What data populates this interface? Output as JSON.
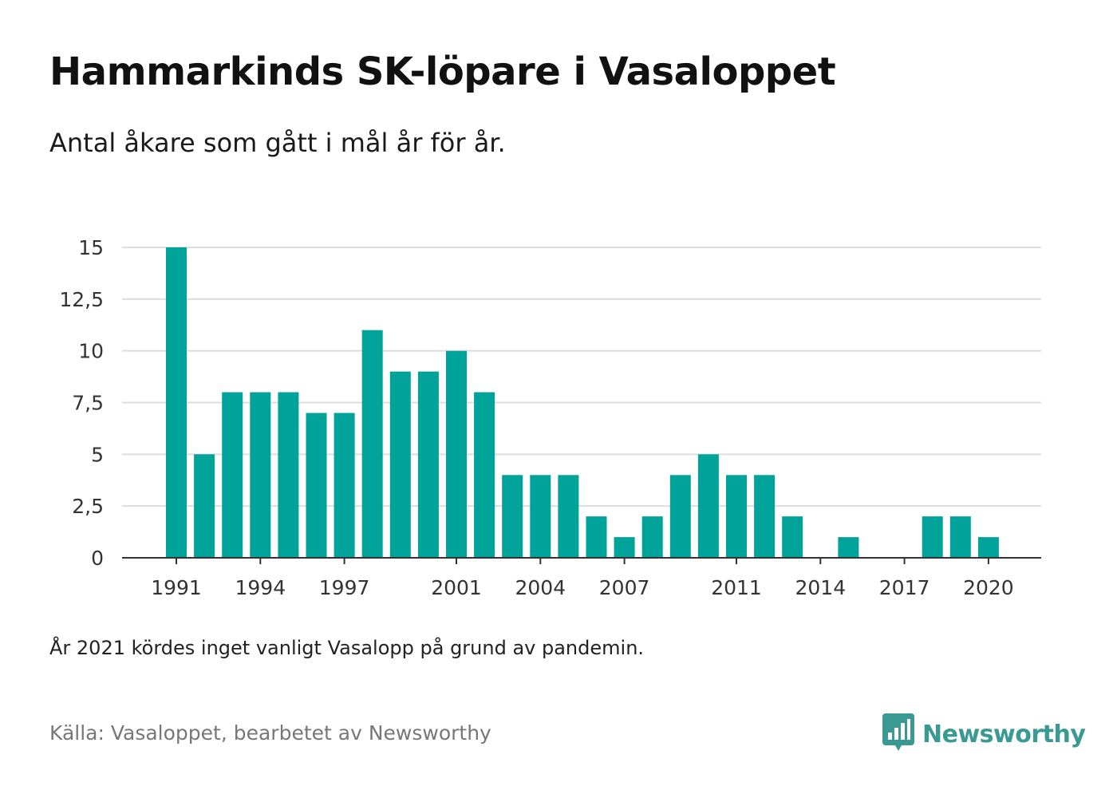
{
  "header": {
    "title": "Hammarkinds SK-löpare i Vasaloppet",
    "subtitle": "Antal åkare som gått i mål år för år."
  },
  "footer": {
    "note": "År 2021 kördes inget vanligt Vasalopp på grund av pandemin.",
    "source": "Källa: Vasaloppet, bearbetet av Newsworthy",
    "brand": "Newsworthy"
  },
  "colors": {
    "bar": "#00a39a",
    "grid": "#dddddd",
    "axis": "#333333",
    "brand": "#3a9a93"
  },
  "chart_data": {
    "type": "bar",
    "title": "Hammarkinds SK-löpare i Vasaloppet",
    "subtitle": "Antal åkare som gått i mål år för år.",
    "xlabel": "",
    "ylabel": "",
    "ylim": [
      0,
      15
    ],
    "grid": true,
    "yticks": [
      0,
      2.5,
      5,
      7.5,
      10,
      12.5,
      15
    ],
    "ytick_labels": [
      "0",
      "2,5",
      "5",
      "7,5",
      "10",
      "12,5",
      "15"
    ],
    "xtick_labels": [
      "1991",
      "1994",
      "1997",
      "2001",
      "2004",
      "2007",
      "2011",
      "2014",
      "2017",
      "2020"
    ],
    "categories": [
      "1991",
      "1992",
      "1993",
      "1994",
      "1995",
      "1996",
      "1997",
      "1998",
      "1999",
      "2000",
      "2001",
      "2002",
      "2003",
      "2004",
      "2005",
      "2006",
      "2007",
      "2008",
      "2009",
      "2010",
      "2011",
      "2012",
      "2013",
      "2014",
      "2015",
      "2016",
      "2017",
      "2018",
      "2019",
      "2020"
    ],
    "values": [
      15,
      5,
      8,
      8,
      8,
      7,
      7,
      11,
      9,
      9,
      10,
      8,
      4,
      4,
      4,
      2,
      1,
      2,
      4,
      5,
      4,
      4,
      2,
      0,
      1,
      0,
      0,
      2,
      2,
      1
    ]
  }
}
